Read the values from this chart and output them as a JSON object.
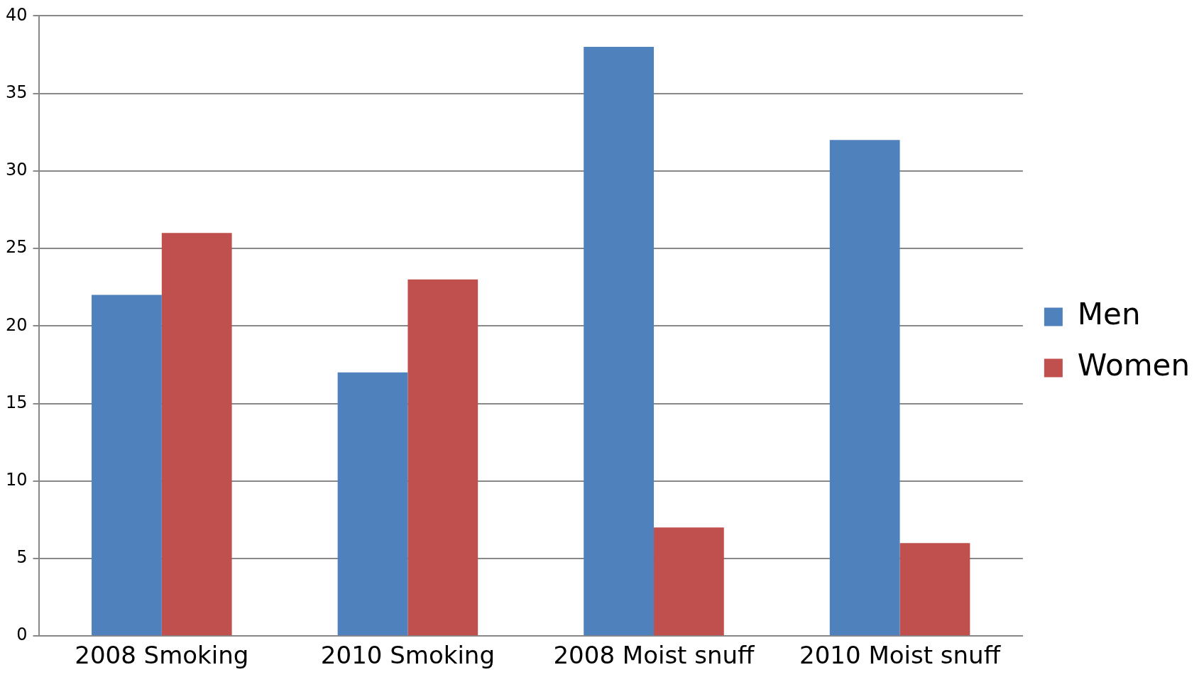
{
  "chart_data": {
    "type": "bar",
    "categories": [
      "2008 Smoking",
      "2010 Smoking",
      "2008 Moist snuff",
      "2010 Moist snuff"
    ],
    "series": [
      {
        "name": "Men",
        "color": "#4f81bd",
        "values": [
          22,
          17,
          38,
          32
        ]
      },
      {
        "name": "Women",
        "color": "#c0504d",
        "values": [
          26,
          23,
          7,
          6
        ]
      }
    ],
    "ylim": [
      0,
      40
    ],
    "yticks": [
      0,
      5,
      10,
      15,
      20,
      25,
      30,
      35,
      40
    ],
    "grid": "y",
    "legend": "right"
  }
}
